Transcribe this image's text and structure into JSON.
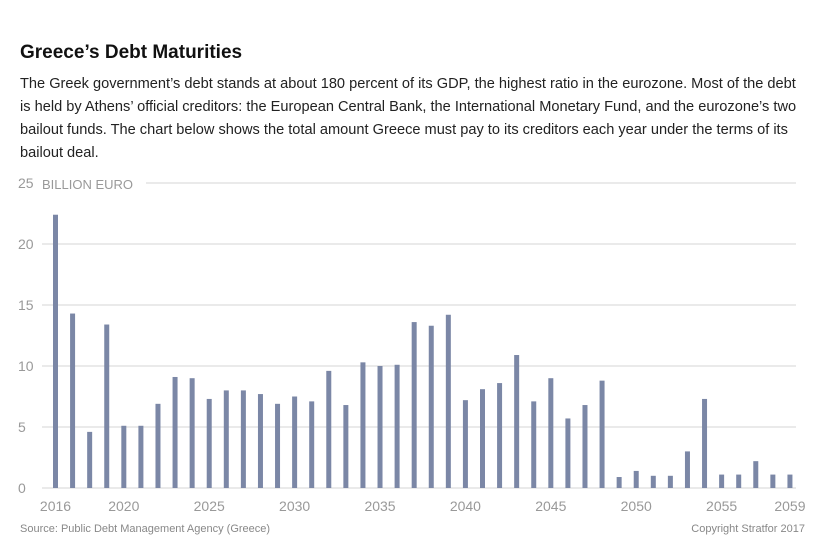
{
  "title": "Greece’s Debt Maturities",
  "subtitle": "The Greek government’s debt stands at about 180 percent of its GDP, the highest ratio in the eurozone. Most of the debt is held by Athens’ official creditors: the European Central Bank, the International Monetary Fund, and the eurozone’s two bailout funds. The chart below shows the total amount Greece must pay to its creditors each year under the terms of its bailout deal.",
  "source": "Source: Public Debt Management Agency (Greece)",
  "copyright": "Copyright Stratfor 2017",
  "colors": {
    "bar": "#7b87a6",
    "grid": "#d4d4d4",
    "tick_text": "#999999"
  },
  "chart_data": {
    "type": "bar",
    "ylabel": "BILLION EURO",
    "ylim": [
      0,
      25
    ],
    "yticks": [
      0,
      5,
      10,
      15,
      20,
      25
    ],
    "xticks": [
      2016,
      2020,
      2025,
      2030,
      2035,
      2040,
      2045,
      2050,
      2055,
      2059
    ],
    "grid": true,
    "categories": [
      2016,
      2017,
      2018,
      2019,
      2020,
      2021,
      2022,
      2023,
      2024,
      2025,
      2026,
      2027,
      2028,
      2029,
      2030,
      2031,
      2032,
      2033,
      2034,
      2035,
      2036,
      2037,
      2038,
      2039,
      2040,
      2041,
      2042,
      2043,
      2044,
      2045,
      2046,
      2047,
      2048,
      2049,
      2050,
      2051,
      2052,
      2053,
      2054,
      2055,
      2056,
      2057,
      2058,
      2059
    ],
    "values": [
      22.4,
      14.3,
      4.6,
      13.4,
      5.1,
      5.1,
      6.9,
      9.1,
      9.0,
      7.3,
      8.0,
      8.0,
      7.7,
      6.9,
      7.5,
      7.1,
      9.6,
      6.8,
      10.3,
      10.0,
      10.1,
      13.6,
      13.3,
      14.2,
      7.2,
      8.1,
      8.6,
      10.9,
      7.1,
      9.0,
      5.7,
      6.8,
      8.8,
      0.9,
      1.4,
      1.0,
      1.0,
      3.0,
      7.3,
      1.1,
      1.1,
      2.2,
      1.1,
      1.1
    ]
  }
}
